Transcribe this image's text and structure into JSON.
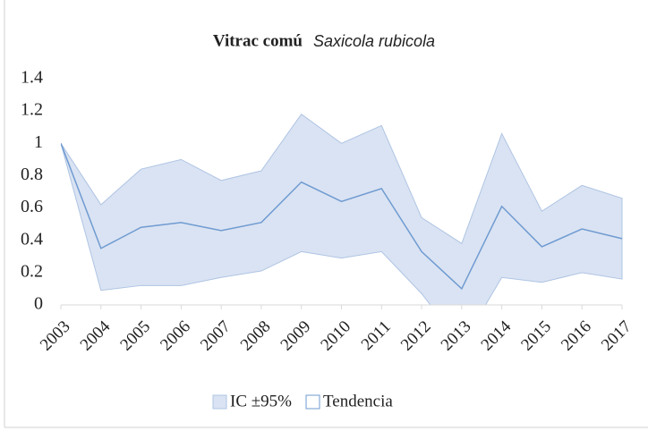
{
  "chart_data": {
    "type": "line",
    "title": "Vitrac comú",
    "subtitle": "Saxicola rubicola",
    "x": [
      2003,
      2004,
      2005,
      2006,
      2007,
      2008,
      2009,
      2010,
      2011,
      2012,
      2013,
      2014,
      2015,
      2016,
      2017
    ],
    "xlim": [
      2003,
      2017
    ],
    "xticks": [
      2003,
      2004,
      2005,
      2006,
      2007,
      2008,
      2009,
      2010,
      2011,
      2012,
      2013,
      2014,
      2015,
      2016,
      2017
    ],
    "ylim": [
      0,
      1.4
    ],
    "yticks": [
      0,
      0.2,
      0.4,
      0.6,
      0.8,
      1,
      1.2,
      1.4
    ],
    "legend": "bottom",
    "series": [
      {
        "name": "IC ±95%",
        "type": "band",
        "color": "#dae3f3",
        "edge_color": "#aec4e3",
        "upper": [
          1.0,
          0.62,
          0.84,
          0.9,
          0.77,
          0.83,
          1.18,
          1.0,
          1.11,
          0.54,
          0.38,
          1.06,
          0.58,
          0.74,
          0.66
        ],
        "lower": [
          1.0,
          0.09,
          0.12,
          0.12,
          0.17,
          0.21,
          0.33,
          0.29,
          0.33,
          0.07,
          -0.25,
          0.17,
          0.14,
          0.2,
          0.16
        ]
      },
      {
        "name": "Tendencia",
        "type": "line",
        "color": "#6f9bd1",
        "values": [
          1.0,
          0.35,
          0.48,
          0.51,
          0.46,
          0.51,
          0.76,
          0.64,
          0.72,
          0.33,
          0.1,
          0.61,
          0.36,
          0.47,
          0.41
        ]
      }
    ]
  }
}
